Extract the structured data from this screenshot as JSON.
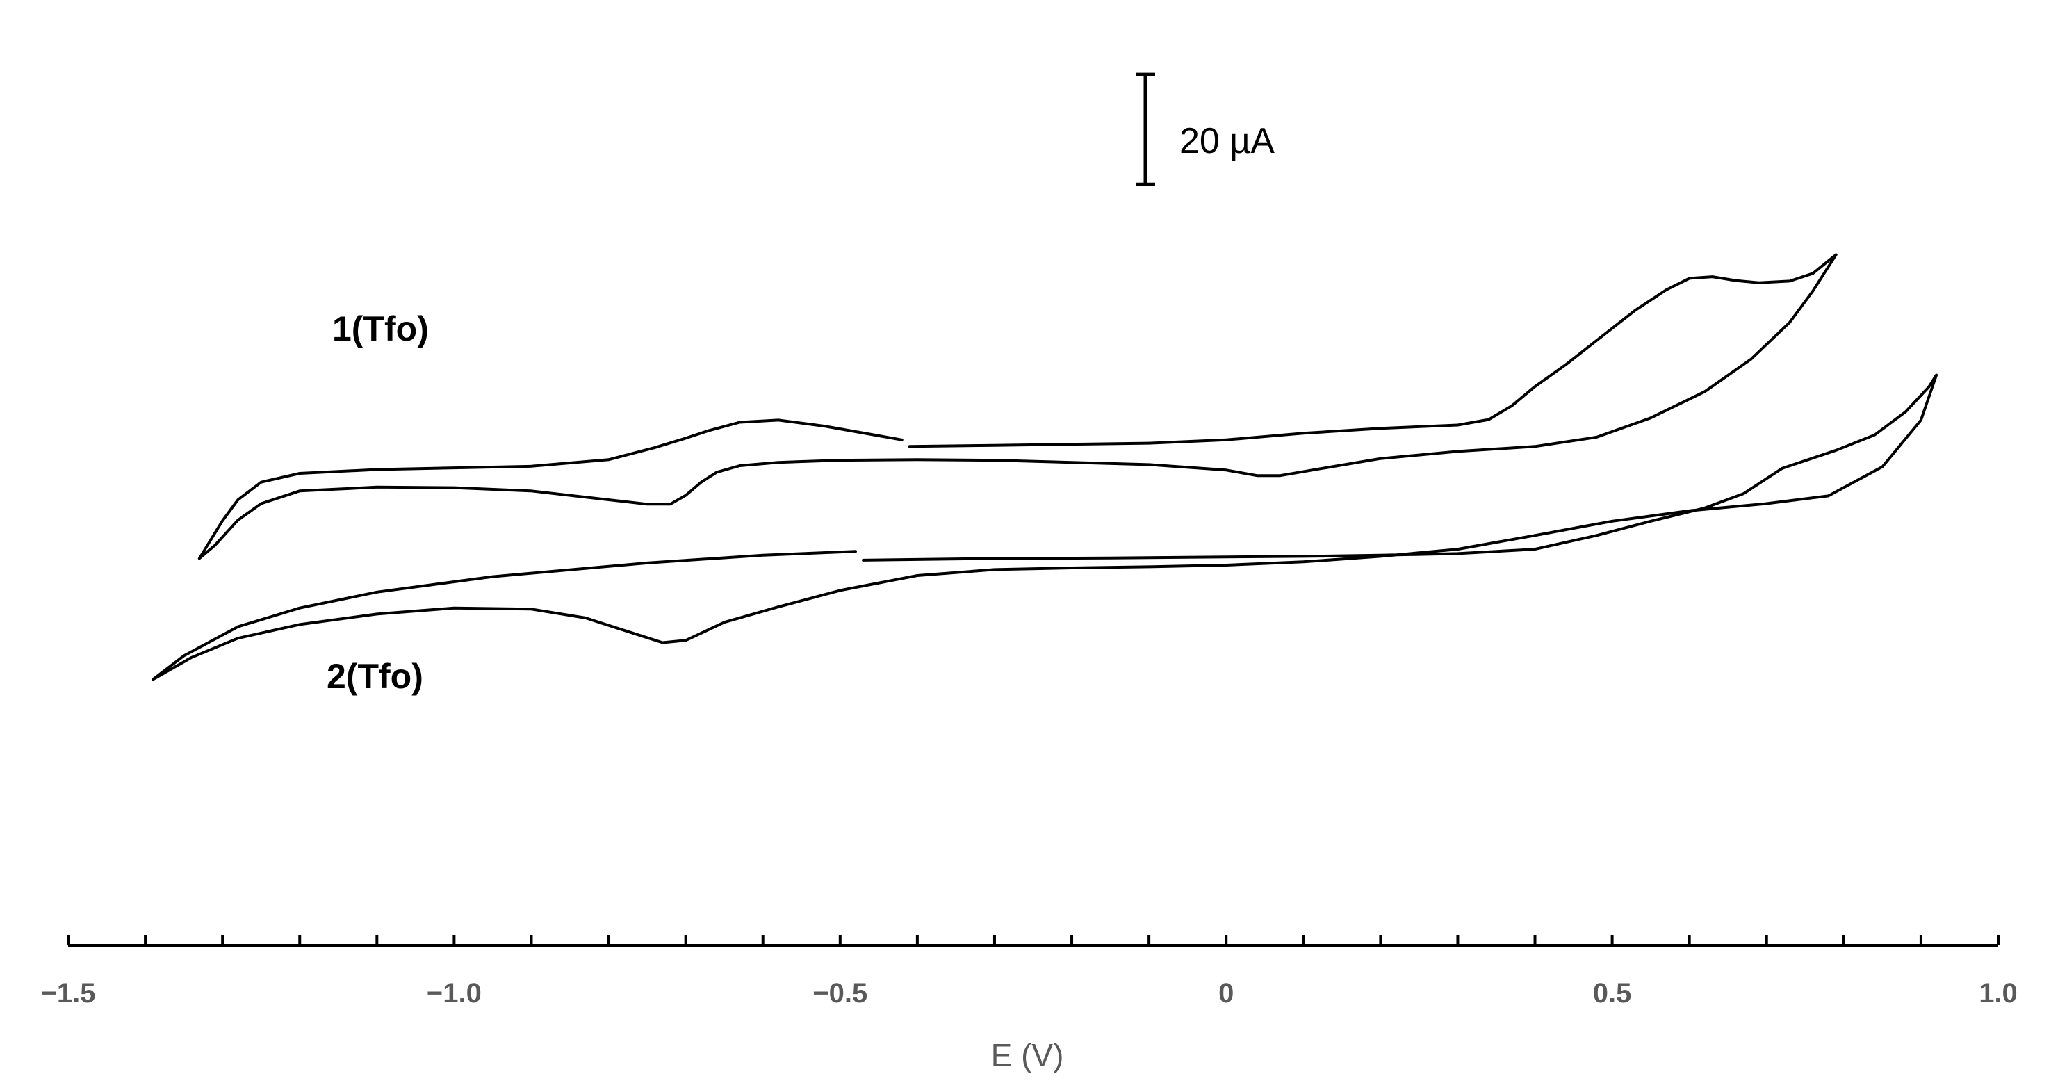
{
  "chart_data": {
    "type": "line",
    "title": "",
    "xlabel": "E (V)",
    "ylabel": "",
    "xlim": [
      -1.5,
      1.0
    ],
    "ylim": [
      -142,
      25
    ],
    "xticks": [
      -1.5,
      -1.0,
      -0.5,
      0,
      0.5,
      1.0
    ],
    "xtick_labels": [
      "−1.5",
      "−1.0",
      "−0.5",
      "0",
      "0.5",
      "1.0"
    ],
    "grid": false,
    "legend": "none",
    "scale_bar": {
      "label": "20 µA",
      "value": 20,
      "unit": "µA"
    },
    "series": [
      {
        "name": "1(Tfo)",
        "segments": [
          [
            [
              -0.42,
              -50
            ],
            [
              -0.46,
              -49
            ],
            [
              -0.52,
              -47.5
            ],
            [
              -0.58,
              -46.4
            ],
            [
              -0.63,
              -46.8
            ],
            [
              -0.67,
              -48.3
            ],
            [
              -0.7,
              -49.7
            ],
            [
              -0.74,
              -51.4
            ],
            [
              -0.8,
              -53.6
            ],
            [
              -0.9,
              -54.8
            ],
            [
              -1.0,
              -55.1
            ],
            [
              -1.1,
              -55.4
            ],
            [
              -1.2,
              -56.1
            ],
            [
              -1.25,
              -57.7
            ],
            [
              -1.28,
              -60.9
            ],
            [
              -1.3,
              -64.7
            ],
            [
              -1.33,
              -71.6
            ],
            [
              -1.31,
              -69.2
            ],
            [
              -1.28,
              -64.6
            ],
            [
              -1.25,
              -61.6
            ],
            [
              -1.2,
              -59.3
            ],
            [
              -1.1,
              -58.6
            ],
            [
              -1.0,
              -58.7
            ],
            [
              -0.9,
              -59.3
            ],
            [
              -0.8,
              -60.9
            ],
            [
              -0.75,
              -61.7
            ],
            [
              -0.72,
              -61.7
            ],
            [
              -0.7,
              -60.1
            ],
            [
              -0.68,
              -57.7
            ],
            [
              -0.66,
              -55.9
            ],
            [
              -0.63,
              -54.7
            ],
            [
              -0.58,
              -54.1
            ],
            [
              -0.5,
              -53.7
            ],
            [
              -0.4,
              -53.6
            ],
            [
              -0.3,
              -53.7
            ],
            [
              -0.2,
              -54.1
            ],
            [
              -0.1,
              -54.5
            ],
            [
              0.0,
              -55.5
            ],
            [
              0.04,
              -56.5
            ],
            [
              0.07,
              -56.5
            ],
            [
              0.12,
              -55.3
            ],
            [
              0.2,
              -53.4
            ],
            [
              0.3,
              -52.1
            ],
            [
              0.4,
              -51.2
            ],
            [
              0.48,
              -49.5
            ],
            [
              0.55,
              -46.0
            ],
            [
              0.62,
              -41.2
            ],
            [
              0.68,
              -35.3
            ],
            [
              0.73,
              -28.6
            ],
            [
              0.76,
              -22.9
            ],
            [
              0.79,
              -16.3
            ],
            [
              0.76,
              -19.7
            ],
            [
              0.73,
              -21.1
            ],
            [
              0.69,
              -21.4
            ],
            [
              0.66,
              -21.0
            ],
            [
              0.63,
              -20.3
            ],
            [
              0.6,
              -20.6
            ],
            [
              0.57,
              -22.7
            ],
            [
              0.53,
              -26.4
            ],
            [
              0.48,
              -31.9
            ],
            [
              0.44,
              -36.3
            ],
            [
              0.4,
              -40.3
            ],
            [
              0.37,
              -43.8
            ],
            [
              0.34,
              -46.3
            ],
            [
              0.3,
              -47.3
            ],
            [
              0.2,
              -47.9
            ],
            [
              0.1,
              -48.8
            ],
            [
              0.0,
              -50.0
            ],
            [
              -0.1,
              -50.6
            ],
            [
              -0.2,
              -50.8
            ],
            [
              -0.3,
              -51.0
            ],
            [
              -0.41,
              -51.2
            ]
          ]
        ]
      },
      {
        "name": "2(Tfo)",
        "segments": [
          [
            [
              -0.48,
              -70.3
            ],
            [
              -0.6,
              -71.0
            ],
            [
              -0.75,
              -72.4
            ],
            [
              -0.95,
              -74.9
            ],
            [
              -1.1,
              -77.7
            ],
            [
              -1.2,
              -80.6
            ],
            [
              -1.28,
              -84.0
            ],
            [
              -1.35,
              -89.3
            ],
            [
              -1.39,
              -93.6
            ],
            [
              -1.38,
              -92.8
            ],
            [
              -1.34,
              -89.6
            ],
            [
              -1.28,
              -86.1
            ],
            [
              -1.2,
              -83.6
            ],
            [
              -1.1,
              -81.7
            ],
            [
              -1.0,
              -80.6
            ],
            [
              -0.9,
              -80.8
            ],
            [
              -0.83,
              -82.4
            ],
            [
              -0.77,
              -85.1
            ],
            [
              -0.73,
              -86.9
            ],
            [
              -0.7,
              -86.5
            ],
            [
              -0.65,
              -83.2
            ],
            [
              -0.58,
              -80.4
            ],
            [
              -0.5,
              -77.4
            ],
            [
              -0.4,
              -74.7
            ],
            [
              -0.3,
              -73.6
            ],
            [
              -0.2,
              -73.3
            ],
            [
              -0.1,
              -73.1
            ],
            [
              0.0,
              -72.8
            ],
            [
              0.1,
              -72.2
            ],
            [
              0.2,
              -71.2
            ],
            [
              0.3,
              -69.9
            ],
            [
              0.4,
              -67.4
            ],
            [
              0.5,
              -64.8
            ],
            [
              0.6,
              -62.9
            ],
            [
              0.7,
              -61.6
            ],
            [
              0.78,
              -60.2
            ],
            [
              0.85,
              -54.9
            ],
            [
              0.9,
              -46.4
            ],
            [
              0.92,
              -38.2
            ],
            [
              0.91,
              -40.4
            ],
            [
              0.88,
              -44.9
            ],
            [
              0.84,
              -49.1
            ],
            [
              0.79,
              -51.9
            ],
            [
              0.72,
              -55.2
            ],
            [
              0.67,
              -59.8
            ],
            [
              0.62,
              -62.4
            ],
            [
              0.55,
              -64.8
            ],
            [
              0.48,
              -67.4
            ],
            [
              0.4,
              -69.9
            ],
            [
              0.3,
              -70.7
            ],
            [
              0.2,
              -71.0
            ],
            [
              0.1,
              -71.2
            ],
            [
              0.0,
              -71.3
            ],
            [
              -0.15,
              -71.5
            ],
            [
              -0.3,
              -71.6
            ],
            [
              -0.47,
              -71.9
            ]
          ]
        ]
      }
    ]
  },
  "labels": {
    "series_1": "1(Tfo)",
    "series_2": "2(Tfo)"
  }
}
